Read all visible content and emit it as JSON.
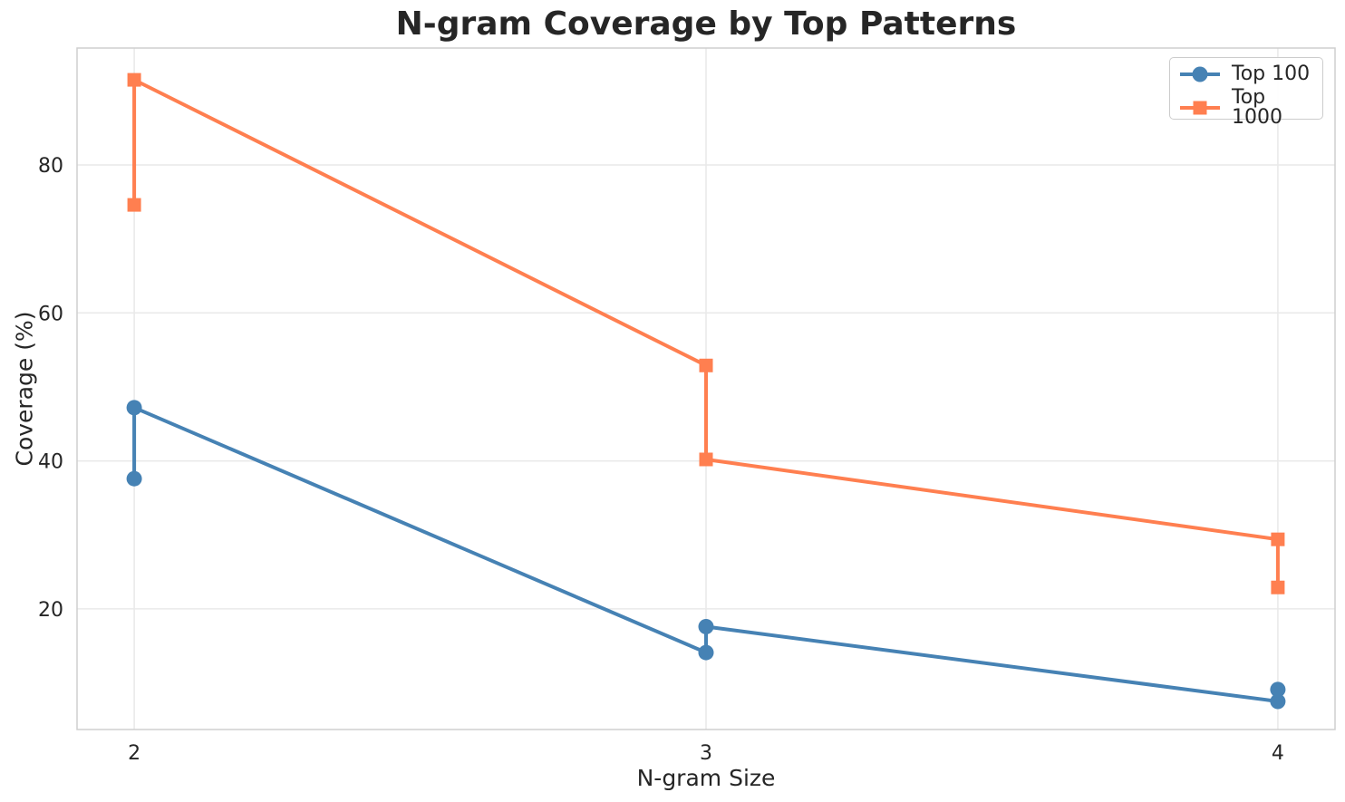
{
  "chart_data": {
    "type": "line",
    "title": "N-gram Coverage by Top Patterns",
    "xlabel": "N-gram Size",
    "ylabel": "Coverage (%)",
    "xlim": [
      1.9,
      4.1
    ],
    "ylim": [
      3.7,
      95.8
    ],
    "xticks": [
      2,
      3,
      4
    ],
    "yticks": [
      20,
      40,
      60,
      80
    ],
    "grid": true,
    "legend_position": "upper right",
    "text_color": "#262626",
    "grid_color": "#e9e9e9",
    "border_color": "#cfcfcf",
    "background_color": "#ffffff",
    "series": [
      {
        "name": "Top 100",
        "color": "#4682B4",
        "marker": "circle",
        "points": [
          [
            2,
            37.6
          ],
          [
            2,
            47.2
          ],
          [
            3,
            14.1
          ],
          [
            3,
            17.6
          ],
          [
            4,
            7.5
          ],
          [
            4,
            9.1
          ]
        ]
      },
      {
        "name": "Top 1000",
        "color": "#FF7F50",
        "marker": "square",
        "points": [
          [
            2,
            74.6
          ],
          [
            2,
            91.5
          ],
          [
            3,
            52.9
          ],
          [
            3,
            40.2
          ],
          [
            4,
            29.4
          ],
          [
            4,
            22.9
          ]
        ]
      }
    ]
  }
}
